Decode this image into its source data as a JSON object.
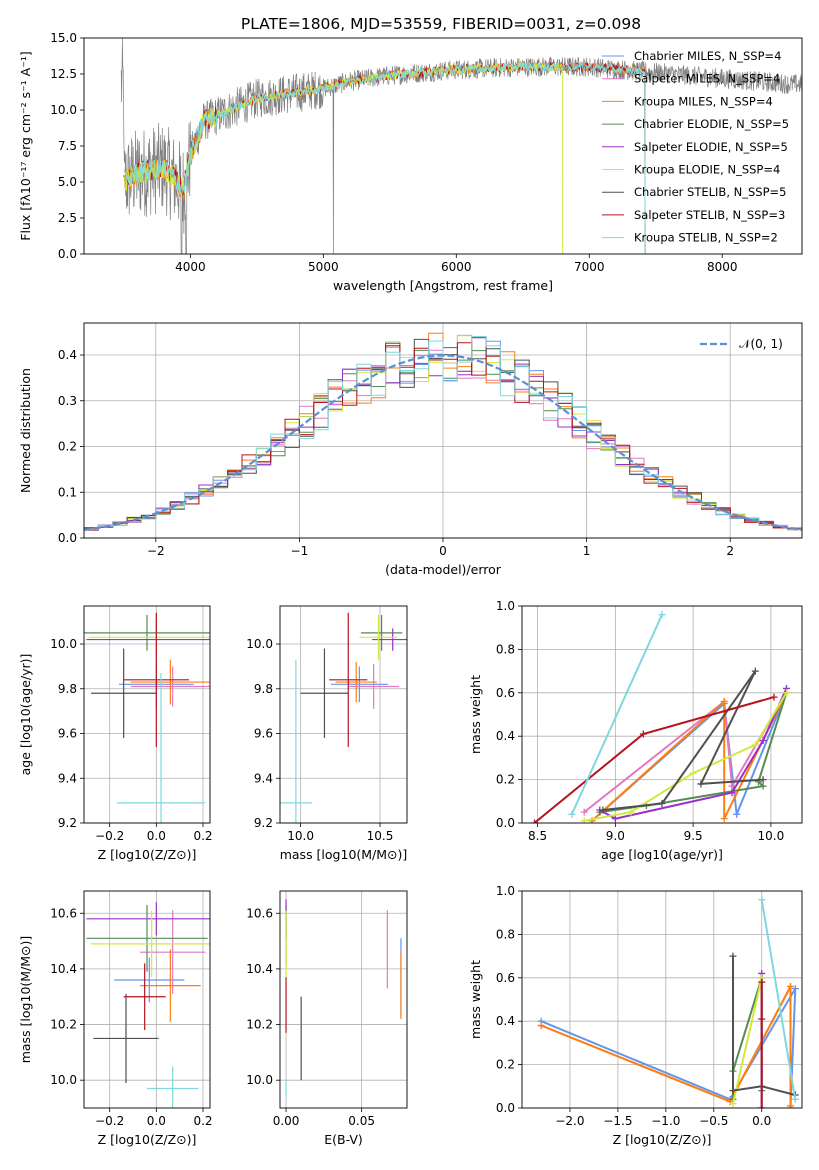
{
  "figure_title": "PLATE=1806, MJD=53559, FIBERID=0031, z=0.098",
  "colors": {
    "ChabrierMILES": "#6495ed",
    "SalpeterMILES": "#e377c2",
    "KroupaMILES": "#ff7f0e",
    "ChabrierELODIE": "#548c54",
    "SalpeterELODIE": "#9b30c8",
    "KroupaELODIE": "#d4e83c",
    "ChabrierSTELIB": "#505050",
    "SalpeterSTELIB": "#b5141e",
    "KroupaSTELIB": "#7fd8e0",
    "spectrum": "#808080",
    "normal": "#5b8fd6"
  },
  "chart_data": [
    {
      "id": "spectrum",
      "type": "line",
      "xlabel": "wavelength [Angstrom, rest frame]",
      "ylabel": "Flux [fλ10⁻¹⁷ erg cm⁻² s⁻¹ A⁻¹]",
      "xlim": [
        3200,
        8600
      ],
      "ylim": [
        0,
        15
      ],
      "xticks": [
        4000,
        5000,
        6000,
        7000,
        8000
      ],
      "yticks": [
        0.0,
        2.5,
        5.0,
        7.5,
        10.0,
        12.5,
        15.0
      ],
      "xtick_labels": [
        "4000",
        "5000",
        "6000",
        "7000",
        "8000"
      ],
      "ytick_labels": [
        "0.0",
        "2.5",
        "5.0",
        "7.5",
        "10.0",
        "12.5",
        "15.0"
      ],
      "continuum": [
        [
          3500,
          5.0
        ],
        [
          3600,
          5.6
        ],
        [
          3800,
          6.0
        ],
        [
          3950,
          4.5
        ],
        [
          4000,
          6.8
        ],
        [
          4100,
          9.2
        ],
        [
          4300,
          10.0
        ],
        [
          4500,
          10.8
        ],
        [
          4800,
          11.2
        ],
        [
          5000,
          11.5
        ],
        [
          5200,
          12.0
        ],
        [
          5500,
          12.4
        ],
        [
          6000,
          12.8
        ],
        [
          6500,
          13.0
        ],
        [
          7000,
          13.0
        ],
        [
          7500,
          12.6
        ],
        [
          8000,
          12.2
        ],
        [
          8500,
          11.8
        ]
      ],
      "legend": [
        "Chabrier MILES, N_SSP=4",
        "Salpeter MILES, N_SSP=4",
        "Kroupa MILES, N_SSP=4",
        "Chabrier ELODIE, N_SSP=5",
        "Salpeter ELODIE, N_SSP=5",
        "Kroupa ELODIE, N_SSP=4",
        "Chabrier STELIB, N_SSP=5",
        "Salpeter STELIB, N_SSP=3",
        "Kroupa STELIB, N_SSP=2"
      ],
      "legend_keys": [
        "ChabrierMILES",
        "SalpeterMILES",
        "KroupaMILES",
        "ChabrierELODIE",
        "SalpeterELODIE",
        "KroupaELODIE",
        "ChabrierSTELIB",
        "SalpeterSTELIB",
        "KroupaSTELIB"
      ],
      "legend_position": "right"
    },
    {
      "id": "residuals",
      "type": "histogram",
      "xlabel": "(data-model)/error",
      "ylabel": "Normed distribution",
      "xlim": [
        -2.5,
        2.5
      ],
      "ylim": [
        0,
        0.47
      ],
      "xticks": [
        -2,
        -1,
        0,
        1,
        2
      ],
      "yticks": [
        0.0,
        0.1,
        0.2,
        0.3,
        0.4
      ],
      "xtick_labels": [
        "−2",
        "−1",
        "0",
        "1",
        "2"
      ],
      "ytick_labels": [
        "0.0",
        "0.1",
        "0.2",
        "0.3",
        "0.4"
      ],
      "grid": true,
      "legend": [
        "𝒩(0, 1)"
      ],
      "legend_position": "top-right",
      "bin_width": 0.1
    },
    {
      "id": "age_vs_Z",
      "type": "errorbar",
      "xlabel": "Z [log10(Z/Z⊙)]",
      "ylabel": "age  [log10(age/yr)]",
      "xlim": [
        -0.31,
        0.23
      ],
      "ylim": [
        9.2,
        10.17
      ],
      "xticks": [
        -0.2,
        0.0,
        0.2
      ],
      "yticks": [
        9.2,
        9.4,
        9.6,
        9.8,
        10.0
      ],
      "xtick_labels": [
        "−0.2",
        "0.0",
        "0.2"
      ],
      "ytick_labels": [
        "9.2",
        "9.4",
        "9.6",
        "9.8",
        "10.0"
      ],
      "grid": true,
      "points": [
        {
          "k": "ChabrierMILES",
          "x": 0.0,
          "xerr": 0.16,
          "y": 9.82,
          "yerr": 0.1
        },
        {
          "k": "SalpeterMILES",
          "x": 0.07,
          "xerr": 0.18,
          "y": 9.81,
          "yerr": 0.09
        },
        {
          "k": "KroupaMILES",
          "x": 0.06,
          "xerr": 0.17,
          "y": 9.83,
          "yerr": 0.1
        },
        {
          "k": "ChabrierELODIE",
          "x": -0.04,
          "xerr": 0.27,
          "y": 10.05,
          "yerr": 0.08
        },
        {
          "k": "SalpeterELODIE",
          "x": 0.0,
          "xerr": 0.3,
          "y": 10.02,
          "yerr": 0.07
        },
        {
          "k": "KroupaELODIE",
          "x": 0.0,
          "xerr": 0.29,
          "y": 10.03,
          "yerr": 0.1
        },
        {
          "k": "ChabrierSTELIB",
          "x": -0.14,
          "xerr": 0.14,
          "y": 9.78,
          "yerr": 0.2
        },
        {
          "k": "SalpeterSTELIB",
          "x": 0.0,
          "xerr": 0.14,
          "y": 9.84,
          "yerr": 0.3
        },
        {
          "k": "KroupaSTELIB",
          "x": 0.02,
          "xerr": 0.19,
          "y": 9.29,
          "yerr": 0.58
        }
      ]
    },
    {
      "id": "age_vs_mass",
      "type": "errorbar",
      "xlabel": "mass [log10(M/M⊙)]",
      "ylabel": "",
      "xlim": [
        9.87,
        10.67
      ],
      "ylim": [
        9.2,
        10.17
      ],
      "xticks": [
        10.0,
        10.5
      ],
      "yticks": [
        9.2,
        9.4,
        9.6,
        9.8,
        10.0
      ],
      "xtick_labels": [
        "10.0",
        "10.5"
      ],
      "ytick_labels": [
        "9.2",
        "9.4",
        "9.6",
        "9.8",
        "10.0"
      ],
      "grid": true,
      "points": [
        {
          "k": "ChabrierMILES",
          "x": 10.37,
          "xerr": 0.18,
          "y": 9.82,
          "yerr": 0.08
        },
        {
          "k": "SalpeterMILES",
          "x": 10.46,
          "xerr": 0.16,
          "y": 9.81,
          "yerr": 0.1
        },
        {
          "k": "KroupaMILES",
          "x": 10.35,
          "xerr": 0.13,
          "y": 9.83,
          "yerr": 0.09
        },
        {
          "k": "ChabrierELODIE",
          "x": 10.51,
          "xerr": 0.13,
          "y": 10.05,
          "yerr": 0.08
        },
        {
          "k": "SalpeterELODIE",
          "x": 10.58,
          "xerr": 0.13,
          "y": 10.02,
          "yerr": 0.05
        },
        {
          "k": "KroupaELODIE",
          "x": 10.49,
          "xerr": 0.12,
          "y": 10.03,
          "yerr": 0.1
        },
        {
          "k": "ChabrierSTELIB",
          "x": 10.15,
          "xerr": 0.15,
          "y": 9.78,
          "yerr": 0.2
        },
        {
          "k": "SalpeterSTELIB",
          "x": 10.3,
          "xerr": 0.12,
          "y": 9.84,
          "yerr": 0.3
        },
        {
          "k": "KroupaSTELIB",
          "x": 9.97,
          "xerr": 0.1,
          "y": 9.29,
          "yerr": 0.64
        }
      ]
    },
    {
      "id": "weight_vs_age",
      "type": "line",
      "xlabel": "age  [log10(age/yr)]",
      "ylabel": "mass weight",
      "xlim": [
        8.4,
        10.2
      ],
      "ylim": [
        0,
        1.0
      ],
      "xticks": [
        8.5,
        9.0,
        9.5,
        10.0
      ],
      "yticks": [
        0.0,
        0.2,
        0.4,
        0.6,
        0.8,
        1.0
      ],
      "xtick_labels": [
        "8.5",
        "9.0",
        "9.5",
        "10.0"
      ],
      "ytick_labels": [
        "0.0",
        "0.2",
        "0.4",
        "0.6",
        "0.8",
        "1.0"
      ],
      "grid": true,
      "series": [
        {
          "k": "ChabrierMILES",
          "x": [
            8.85,
            9.7,
            9.78,
            10.1
          ],
          "y": [
            0.01,
            0.55,
            0.04,
            0.6
          ]
        },
        {
          "k": "SalpeterMILES",
          "x": [
            8.8,
            9.7,
            9.75,
            10.1
          ],
          "y": [
            0.05,
            0.56,
            0.17,
            0.6
          ]
        },
        {
          "k": "KroupaMILES",
          "x": [
            8.85,
            9.7,
            9.7,
            10.1
          ],
          "y": [
            0.01,
            0.56,
            0.02,
            0.6
          ]
        },
        {
          "k": "ChabrierELODIE",
          "x": [
            8.9,
            9.2,
            9.95,
            9.92,
            10.1
          ],
          "y": [
            0.05,
            0.08,
            0.17,
            0.19,
            0.6
          ]
        },
        {
          "k": "SalpeterELODIE",
          "x": [
            8.9,
            9.0,
            9.75,
            9.95,
            10.1
          ],
          "y": [
            0.06,
            0.02,
            0.14,
            0.38,
            0.62
          ]
        },
        {
          "k": "KroupaELODIE",
          "x": [
            8.8,
            9.1,
            9.5,
            9.9,
            10.1
          ],
          "y": [
            0.01,
            0.05,
            0.23,
            0.36,
            0.6
          ]
        },
        {
          "k": "ChabrierSTELIB",
          "x": [
            8.92,
            9.3,
            9.9,
            9.55,
            9.95
          ],
          "y": [
            0.06,
            0.09,
            0.7,
            0.18,
            0.2
          ]
        },
        {
          "k": "SalpeterSTELIB",
          "x": [
            8.48,
            9.18,
            10.02
          ],
          "y": [
            0.0,
            0.41,
            0.58
          ]
        },
        {
          "k": "KroupaSTELIB",
          "x": [
            8.72,
            9.3
          ],
          "y": [
            0.04,
            0.96
          ]
        }
      ]
    },
    {
      "id": "mass_vs_Z",
      "type": "errorbar",
      "xlabel": "Z [log10(Z/Z⊙)]",
      "ylabel": "mass [log10(M/M⊙)]",
      "xlim": [
        -0.31,
        0.23
      ],
      "ylim": [
        9.9,
        10.68
      ],
      "xticks": [
        -0.2,
        0.0,
        0.2
      ],
      "yticks": [
        10.0,
        10.2,
        10.4,
        10.6
      ],
      "xtick_labels": [
        "−0.2",
        "0.0",
        "0.2"
      ],
      "ytick_labels": [
        "10.0",
        "10.2",
        "10.4",
        "10.6"
      ],
      "grid": true,
      "points": [
        {
          "k": "ChabrierMILES",
          "x": -0.03,
          "xerr": 0.15,
          "y": 10.36,
          "yerr": 0.08
        },
        {
          "k": "SalpeterMILES",
          "x": 0.07,
          "xerr": 0.14,
          "y": 10.46,
          "yerr": 0.15
        },
        {
          "k": "KroupaMILES",
          "x": 0.06,
          "xerr": 0.13,
          "y": 10.34,
          "yerr": 0.13
        },
        {
          "k": "ChabrierELODIE",
          "x": -0.04,
          "xerr": 0.26,
          "y": 10.51,
          "yerr": 0.12
        },
        {
          "k": "SalpeterELODIE",
          "x": 0.0,
          "xerr": 0.3,
          "y": 10.58,
          "yerr": 0.06
        },
        {
          "k": "KroupaELODIE",
          "x": -0.02,
          "xerr": 0.26,
          "y": 10.49,
          "yerr": 0.12
        },
        {
          "k": "ChabrierSTELIB",
          "x": -0.13,
          "xerr": 0.14,
          "y": 10.15,
          "yerr": 0.16
        },
        {
          "k": "SalpeterSTELIB",
          "x": -0.05,
          "xerr": 0.09,
          "y": 10.3,
          "yerr": 0.12
        },
        {
          "k": "KroupaSTELIB",
          "x": 0.07,
          "xerr": 0.11,
          "y": 9.97,
          "yerr": 0.08
        }
      ]
    },
    {
      "id": "mass_vs_EBV",
      "type": "errorbar",
      "xlabel": "E(B-V)",
      "ylabel": "",
      "xlim": [
        -0.004,
        0.08
      ],
      "ylim": [
        9.9,
        10.68
      ],
      "xticks": [
        0.0,
        0.05
      ],
      "yticks": [
        10.0,
        10.2,
        10.4,
        10.6
      ],
      "xtick_labels": [
        "0.00",
        "0.05"
      ],
      "ytick_labels": [
        "10.0",
        "10.2",
        "10.4",
        "10.6"
      ],
      "grid": true,
      "points": [
        {
          "k": "ChabrierMILES",
          "x": 0.076,
          "xerr": 0,
          "y": 10.37,
          "yerr": 0.14
        },
        {
          "k": "SalpeterMILES",
          "x": 0.067,
          "xerr": 0,
          "y": 10.47,
          "yerr": 0.14
        },
        {
          "k": "KroupaMILES",
          "x": 0.076,
          "xerr": 0,
          "y": 10.34,
          "yerr": 0.12
        },
        {
          "k": "ChabrierELODIE",
          "x": 0.0,
          "xerr": 0,
          "y": 10.52,
          "yerr": 0.11
        },
        {
          "k": "SalpeterELODIE",
          "x": 0.0,
          "xerr": 0,
          "y": 10.58,
          "yerr": 0.07
        },
        {
          "k": "KroupaELODIE",
          "x": 0.0,
          "xerr": 0,
          "y": 10.49,
          "yerr": 0.12
        },
        {
          "k": "ChabrierSTELIB",
          "x": 0.01,
          "xerr": 0,
          "y": 10.15,
          "yerr": 0.15
        },
        {
          "k": "SalpeterSTELIB",
          "x": 0.0,
          "xerr": 0,
          "y": 10.27,
          "yerr": 0.1
        },
        {
          "k": "KroupaSTELIB",
          "x": 0.0,
          "xerr": 0,
          "y": 9.97,
          "yerr": 0.03
        }
      ]
    },
    {
      "id": "weight_vs_Z",
      "type": "line",
      "xlabel": "Z [log10(Z/Z⊙)]",
      "ylabel": "mass weight",
      "xlim": [
        -2.5,
        0.42
      ],
      "ylim": [
        0,
        1.0
      ],
      "xticks": [
        -2.0,
        -1.5,
        -1.0,
        -0.5,
        0.0
      ],
      "yticks": [
        0.0,
        0.2,
        0.4,
        0.6,
        0.8,
        1.0
      ],
      "xtick_labels": [
        "−2.0",
        "−1.5",
        "−1.0",
        "−0.5",
        "0.0"
      ],
      "ytick_labels": [
        "0.0",
        "0.2",
        "0.4",
        "0.6",
        "0.8",
        "1.0"
      ],
      "grid": true,
      "series": [
        {
          "k": "ChabrierMILES",
          "x": [
            -2.3,
            -0.33,
            0.35,
            0.3
          ],
          "y": [
            0.4,
            0.04,
            0.55,
            0.0
          ]
        },
        {
          "k": "SalpeterMILES",
          "x": [
            -2.3,
            -0.33,
            0.3
          ],
          "y": [
            0.38,
            0.03,
            0.56
          ]
        },
        {
          "k": "KroupaMILES",
          "x": [
            -2.3,
            -0.33,
            0.3,
            0.3
          ],
          "y": [
            0.38,
            0.03,
            0.56,
            0.01
          ]
        },
        {
          "k": "ChabrierELODIE",
          "x": [
            -0.3,
            -0.3,
            0.0,
            0.0
          ],
          "y": [
            0.04,
            0.17,
            0.6,
            0.08
          ]
        },
        {
          "k": "SalpeterELODIE",
          "x": [
            0.0,
            0.0
          ],
          "y": [
            0.0,
            0.62
          ]
        },
        {
          "k": "KroupaELODIE",
          "x": [
            -0.3,
            0.0
          ],
          "y": [
            0.02,
            0.6
          ]
        },
        {
          "k": "ChabrierSTELIB",
          "x": [
            -0.3,
            -0.3,
            0.0,
            0.35
          ],
          "y": [
            0.7,
            0.08,
            0.1,
            0.06
          ]
        },
        {
          "k": "SalpeterSTELIB",
          "x": [
            0.0,
            0.0,
            0.0
          ],
          "y": [
            0.0,
            0.41,
            0.58
          ]
        },
        {
          "k": "KroupaSTELIB",
          "x": [
            0.0,
            0.35
          ],
          "y": [
            0.96,
            0.04
          ]
        }
      ]
    }
  ]
}
